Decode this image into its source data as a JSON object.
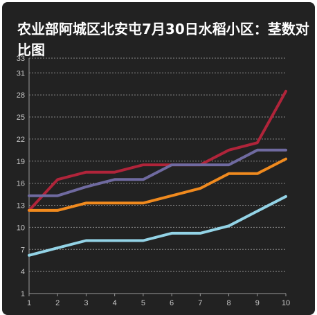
{
  "chart_data": {
    "type": "line",
    "title": "农业部阿城区北安屯7月30日水稻小区：茎数对比图",
    "xlabel": "",
    "ylabel": "",
    "x": [
      1,
      2,
      3,
      4,
      5,
      6,
      7,
      8,
      9,
      10
    ],
    "y_ticks": [
      1,
      4,
      7,
      10,
      13,
      16,
      19,
      22,
      25,
      28,
      31,
      33
    ],
    "ylim": [
      1,
      33
    ],
    "grid": true,
    "legend": "none",
    "series": [
      {
        "color": "#b0243a",
        "values": [
          12.3,
          16.5,
          17.5,
          17.5,
          18.5,
          18.5,
          18.5,
          20.5,
          21.5,
          28.5
        ]
      },
      {
        "color": "#6f6aa0",
        "values": [
          14.3,
          14.3,
          15.5,
          16.5,
          16.5,
          18.5,
          18.5,
          18.5,
          20.5,
          20.5
        ]
      },
      {
        "color": "#f08a1e",
        "values": [
          12.3,
          12.3,
          13.3,
          13.3,
          13.3,
          14.3,
          15.3,
          17.3,
          17.3,
          19.3
        ]
      },
      {
        "color": "#93d3e6",
        "values": [
          6.2,
          7.2,
          8.2,
          8.2,
          8.2,
          9.2,
          9.2,
          10.2,
          12.2,
          14.2
        ]
      }
    ]
  }
}
